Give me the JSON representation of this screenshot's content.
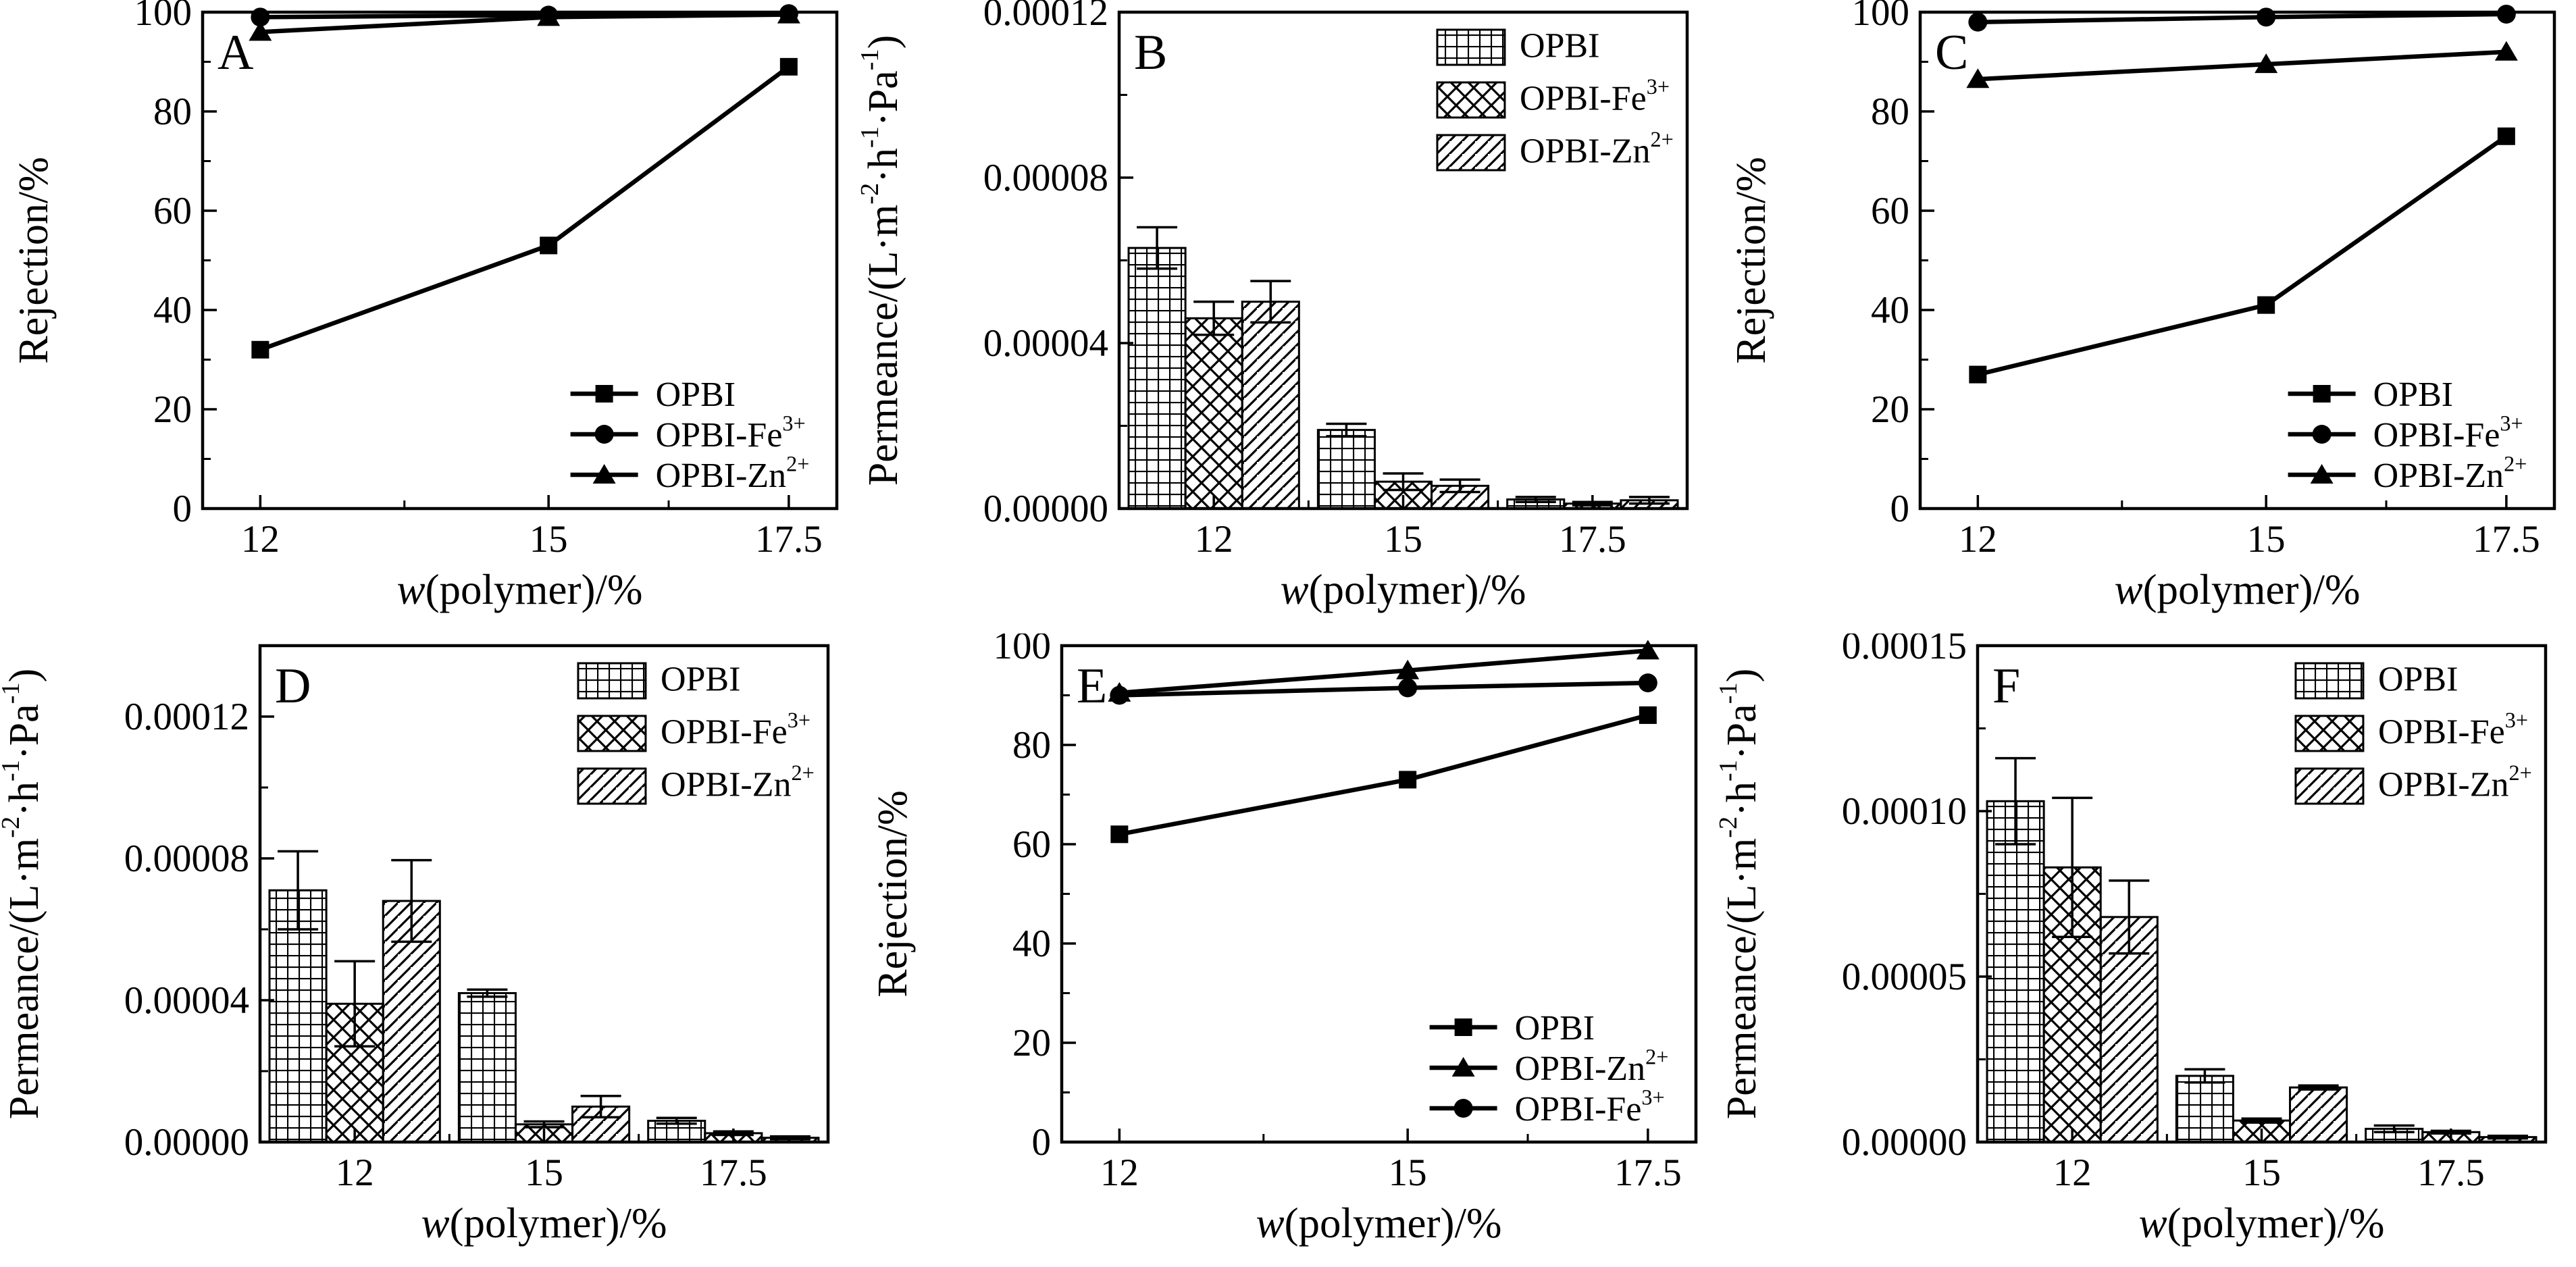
{
  "figure": {
    "background": "#ffffff",
    "ink": "#000000",
    "panel_count": 6
  },
  "chart_data": [
    {
      "id": "A",
      "panel_label": "A",
      "type": "line",
      "xlabel": [
        {
          "t": "w",
          "italic": true
        },
        {
          "t": "(polymer)/%"
        }
      ],
      "ylabel": [
        {
          "t": "Rejection/%"
        }
      ],
      "xlim": [
        11.4,
        18.0
      ],
      "xticks": [
        {
          "v": 12,
          "label": "12"
        },
        {
          "v": 15,
          "label": "15"
        },
        {
          "v": 17.5,
          "label": "17.5"
        }
      ],
      "xminor": [
        13.5,
        16.25
      ],
      "ylim": [
        0,
        100
      ],
      "yticks": [
        {
          "v": 0,
          "label": "0"
        },
        {
          "v": 20,
          "label": "20"
        },
        {
          "v": 40,
          "label": "40"
        },
        {
          "v": 60,
          "label": "60"
        },
        {
          "v": 80,
          "label": "80"
        },
        {
          "v": 100,
          "label": "100"
        }
      ],
      "yminor": [
        10,
        30,
        50,
        70,
        90
      ],
      "legend_pos": "bottom-right",
      "series": [
        {
          "key": "opbi",
          "name": [
            {
              "t": "OPBI"
            }
          ],
          "marker": "square",
          "x": [
            12,
            15,
            17.5
          ],
          "values": [
            32,
            53,
            89
          ]
        },
        {
          "key": "opbi-fe",
          "name": [
            {
              "t": "OPBI-Fe"
            },
            {
              "t": "3+",
              "sup": true
            }
          ],
          "marker": "circle",
          "x": [
            12,
            15,
            17.5
          ],
          "values": [
            99,
            99.4,
            99.7
          ]
        },
        {
          "key": "opbi-zn",
          "name": [
            {
              "t": "OPBI-Zn"
            },
            {
              "t": "2+",
              "sup": true
            }
          ],
          "marker": "triangle",
          "x": [
            12,
            15,
            17.5
          ],
          "values": [
            96,
            99,
            99.5
          ]
        }
      ]
    },
    {
      "id": "B",
      "panel_label": "B",
      "type": "bar",
      "xlabel": [
        {
          "t": "w",
          "italic": true
        },
        {
          "t": "(polymer)/%"
        }
      ],
      "ylabel": [
        {
          "t": "Permeance/(L·m"
        },
        {
          "t": "-2",
          "sup": true
        },
        {
          "t": "·h"
        },
        {
          "t": "-1",
          "sup": true
        },
        {
          "t": "·Pa"
        },
        {
          "t": "-1",
          "sup": true
        },
        {
          "t": ")"
        }
      ],
      "categories": [
        "12",
        "15",
        "17.5"
      ],
      "ylim": [
        0,
        0.00012
      ],
      "yticks": [
        {
          "v": 0,
          "label": "0.00000"
        },
        {
          "v": 4e-05,
          "label": "0.00004"
        },
        {
          "v": 8e-05,
          "label": "0.00008"
        },
        {
          "v": 0.00012,
          "label": "0.00012"
        }
      ],
      "yminor": [
        2e-05,
        6e-05,
        0.0001
      ],
      "legend_pos": "top-right",
      "series": [
        {
          "key": "opbi",
          "name": [
            {
              "t": "OPBI"
            }
          ],
          "pattern": "grid",
          "values": [
            6.3e-05,
            1.9e-05,
            2.2e-06
          ],
          "errors": [
            5e-06,
            1.5e-06,
            6e-07
          ]
        },
        {
          "key": "opbi-fe",
          "name": [
            {
              "t": "OPBI-Fe"
            },
            {
              "t": "3+",
              "sup": true
            }
          ],
          "pattern": "cross",
          "values": [
            4.6e-05,
            6.5e-06,
            1.2e-06
          ],
          "errors": [
            4e-06,
            2e-06,
            4e-07
          ]
        },
        {
          "key": "opbi-zn",
          "name": [
            {
              "t": "OPBI-Zn"
            },
            {
              "t": "2+",
              "sup": true
            }
          ],
          "pattern": "diag",
          "values": [
            5e-05,
            5.5e-06,
            2e-06
          ],
          "errors": [
            5e-06,
            1.5e-06,
            8e-07
          ]
        }
      ]
    },
    {
      "id": "C",
      "panel_label": "C",
      "type": "line",
      "xlabel": [
        {
          "t": "w",
          "italic": true
        },
        {
          "t": "(polymer)/%"
        }
      ],
      "ylabel": [
        {
          "t": "Rejection/%"
        }
      ],
      "xlim": [
        11.4,
        18.0
      ],
      "xticks": [
        {
          "v": 12,
          "label": "12"
        },
        {
          "v": 15,
          "label": "15"
        },
        {
          "v": 17.5,
          "label": "17.5"
        }
      ],
      "xminor": [
        13.5,
        16.25
      ],
      "ylim": [
        0,
        100
      ],
      "yticks": [
        {
          "v": 0,
          "label": "0"
        },
        {
          "v": 20,
          "label": "20"
        },
        {
          "v": 40,
          "label": "40"
        },
        {
          "v": 60,
          "label": "60"
        },
        {
          "v": 80,
          "label": "80"
        },
        {
          "v": 100,
          "label": "100"
        }
      ],
      "yminor": [
        10,
        30,
        50,
        70,
        90
      ],
      "legend_pos": "bottom-right",
      "series": [
        {
          "key": "opbi",
          "name": [
            {
              "t": "OPBI"
            }
          ],
          "marker": "square",
          "x": [
            12,
            15,
            17.5
          ],
          "values": [
            27,
            41,
            75
          ]
        },
        {
          "key": "opbi-fe",
          "name": [
            {
              "t": "OPBI-Fe"
            },
            {
              "t": "3+",
              "sup": true
            }
          ],
          "marker": "circle",
          "x": [
            12,
            15,
            17.5
          ],
          "values": [
            98,
            99,
            99.6
          ]
        },
        {
          "key": "opbi-zn",
          "name": [
            {
              "t": "OPBI-Zn"
            },
            {
              "t": "2+",
              "sup": true
            }
          ],
          "marker": "triangle",
          "x": [
            12,
            15,
            17.5
          ],
          "values": [
            86.5,
            89.5,
            92
          ]
        }
      ]
    },
    {
      "id": "D",
      "panel_label": "D",
      "type": "bar",
      "xlabel": [
        {
          "t": "w",
          "italic": true
        },
        {
          "t": "(polymer)/%"
        }
      ],
      "ylabel": [
        {
          "t": "Permeance/(L·m"
        },
        {
          "t": "-2",
          "sup": true
        },
        {
          "t": "·h"
        },
        {
          "t": "-1",
          "sup": true
        },
        {
          "t": "·Pa"
        },
        {
          "t": "-1",
          "sup": true
        },
        {
          "t": ")"
        }
      ],
      "categories": [
        "12",
        "15",
        "17.5"
      ],
      "ylim": [
        0,
        0.00014
      ],
      "yticks": [
        {
          "v": 0,
          "label": "0.00000"
        },
        {
          "v": 4e-05,
          "label": "0.00004"
        },
        {
          "v": 8e-05,
          "label": "0.00008"
        },
        {
          "v": 0.00012,
          "label": "0.00012"
        }
      ],
      "yminor": [
        2e-05,
        6e-05,
        0.0001
      ],
      "legend_pos": "top-right",
      "series": [
        {
          "key": "opbi",
          "name": [
            {
              "t": "OPBI"
            }
          ],
          "pattern": "grid",
          "values": [
            7.1e-05,
            4.2e-05,
            6e-06
          ],
          "errors": [
            1.1e-05,
            1e-06,
            8e-07
          ]
        },
        {
          "key": "opbi-fe",
          "name": [
            {
              "t": "OPBI-Fe"
            },
            {
              "t": "3+",
              "sup": true
            }
          ],
          "pattern": "cross",
          "values": [
            3.9e-05,
            5e-06,
            2.5e-06
          ],
          "errors": [
            1.2e-05,
            8e-07,
            5e-07
          ]
        },
        {
          "key": "opbi-zn",
          "name": [
            {
              "t": "OPBI-Zn"
            },
            {
              "t": "2+",
              "sup": true
            }
          ],
          "pattern": "diag",
          "values": [
            6.8e-05,
            1e-05,
            1.2e-06
          ],
          "errors": [
            1.15e-05,
            3e-06,
            4e-07
          ]
        }
      ]
    },
    {
      "id": "E",
      "panel_label": "E",
      "type": "line",
      "xlabel": [
        {
          "t": "w",
          "italic": true
        },
        {
          "t": "(polymer)/%"
        }
      ],
      "ylabel": [
        {
          "t": "Rejection/%"
        }
      ],
      "xlim": [
        11.4,
        18.0
      ],
      "xticks": [
        {
          "v": 12,
          "label": "12"
        },
        {
          "v": 15,
          "label": "15"
        },
        {
          "v": 17.5,
          "label": "17.5"
        }
      ],
      "xminor": [
        13.5,
        16.25
      ],
      "ylim": [
        0,
        100
      ],
      "yticks": [
        {
          "v": 0,
          "label": "0"
        },
        {
          "v": 20,
          "label": "20"
        },
        {
          "v": 40,
          "label": "40"
        },
        {
          "v": 60,
          "label": "60"
        },
        {
          "v": 80,
          "label": "80"
        },
        {
          "v": 100,
          "label": "100"
        }
      ],
      "yminor": [
        10,
        30,
        50,
        70,
        90
      ],
      "legend_pos": "bottom-right",
      "series": [
        {
          "key": "opbi",
          "name": [
            {
              "t": "OPBI"
            }
          ],
          "marker": "square",
          "x": [
            12,
            15,
            17.5
          ],
          "values": [
            62,
            73,
            86
          ]
        },
        {
          "key": "opbi-zn",
          "name": [
            {
              "t": "OPBI-Zn"
            },
            {
              "t": "2+",
              "sup": true
            }
          ],
          "marker": "triangle",
          "x": [
            12,
            15,
            17.5
          ],
          "values": [
            90.5,
            95,
            99
          ]
        },
        {
          "key": "opbi-fe",
          "name": [
            {
              "t": "OPBI-Fe"
            },
            {
              "t": "3+",
              "sup": true
            }
          ],
          "marker": "circle",
          "x": [
            12,
            15,
            17.5
          ],
          "values": [
            90,
            91.5,
            92.5
          ]
        }
      ]
    },
    {
      "id": "F",
      "panel_label": "F",
      "type": "bar",
      "xlabel": [
        {
          "t": "w",
          "italic": true
        },
        {
          "t": "(polymer)/%"
        }
      ],
      "ylabel": [
        {
          "t": "Permeance/(L·m"
        },
        {
          "t": "-2",
          "sup": true
        },
        {
          "t": "·h"
        },
        {
          "t": "-1",
          "sup": true
        },
        {
          "t": "·Pa"
        },
        {
          "t": "-1",
          "sup": true
        },
        {
          "t": ")"
        }
      ],
      "categories": [
        "12",
        "15",
        "17.5"
      ],
      "ylim": [
        0,
        0.00015
      ],
      "yticks": [
        {
          "v": 0,
          "label": "0.00000"
        },
        {
          "v": 5e-05,
          "label": "0.00005"
        },
        {
          "v": 0.0001,
          "label": "0.00010"
        },
        {
          "v": 0.00015,
          "label": "0.00015"
        }
      ],
      "yminor": [
        2.5e-05,
        7.5e-05,
        0.000125
      ],
      "legend_pos": "top-right",
      "series": [
        {
          "key": "opbi",
          "name": [
            {
              "t": "OPBI"
            }
          ],
          "pattern": "grid",
          "values": [
            0.000103,
            2e-05,
            4e-06
          ],
          "errors": [
            1.3e-05,
            2e-06,
            1e-06
          ]
        },
        {
          "key": "opbi-fe",
          "name": [
            {
              "t": "OPBI-Fe"
            },
            {
              "t": "3+",
              "sup": true
            }
          ],
          "pattern": "cross",
          "values": [
            8.3e-05,
            6.5e-06,
            3e-06
          ],
          "errors": [
            2.1e-05,
            6e-07,
            4e-07
          ]
        },
        {
          "key": "opbi-zn",
          "name": [
            {
              "t": "OPBI-Zn"
            },
            {
              "t": "2+",
              "sup": true
            }
          ],
          "pattern": "diag",
          "values": [
            6.8e-05,
            1.65e-05,
            1.5e-06
          ],
          "errors": [
            1.1e-05,
            6e-07,
            4e-07
          ]
        }
      ]
    }
  ]
}
